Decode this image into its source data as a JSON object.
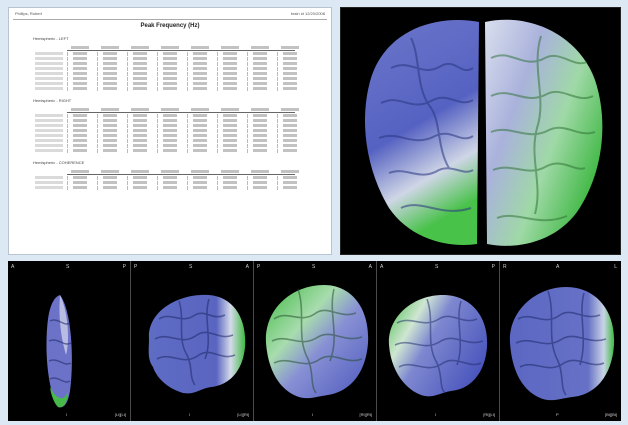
{
  "report": {
    "header_left": "Phillips, Robert",
    "header_right": "brain id 12/20/2008",
    "title": "Peak Frequency (Hz)",
    "sections": [
      {
        "heading": "Hemispheric - LEFT"
      },
      {
        "heading": "Hemispheric - RIGHT"
      },
      {
        "heading": "Hemispheric - COHERENCE"
      }
    ]
  },
  "panels": [
    {
      "id": "top",
      "orient": [
        "A",
        "S",
        "P"
      ],
      "mid": "I",
      "label": "[Lt][Lt]"
    },
    {
      "id": "left",
      "orient": [
        "P",
        "S",
        "A"
      ],
      "mid": "I",
      "label": "[Lt][Rt]"
    },
    {
      "id": "front",
      "orient": [
        "P",
        "S",
        "A"
      ],
      "mid": "I",
      "label": "[Rt][Rt]"
    },
    {
      "id": "right",
      "orient": [
        "A",
        "S",
        "P"
      ],
      "mid": "I",
      "label": "[Rt][Lt]"
    },
    {
      "id": "rear",
      "orient": [
        "R",
        "A",
        "L"
      ],
      "mid": "P",
      "label": "[Bt][Bt]"
    }
  ],
  "colors": {
    "brain_blue": "#4a5fc4",
    "brain_white": "#eef0f6",
    "brain_green": "#3fbf3f",
    "panel_bg": "#000000"
  }
}
